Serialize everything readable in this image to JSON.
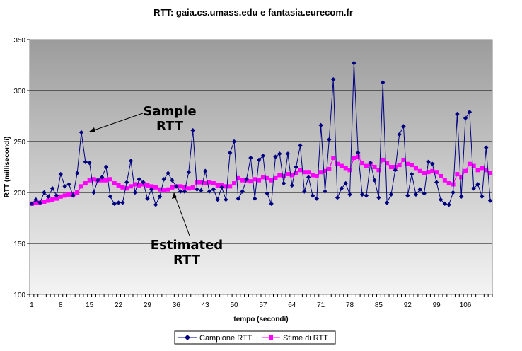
{
  "chart_data": {
    "type": "line",
    "title": "RTT: gaia.cs.umass.edu e fantasia.eurecom.fr",
    "xlabel": "tempo (secondi)",
    "ylabel": "RTT (millisecondi)",
    "ylim": [
      100,
      350
    ],
    "yticks": [
      "100",
      "150",
      "200",
      "250",
      "300",
      "350"
    ],
    "xlim": [
      1,
      111
    ],
    "xticks": [
      "1",
      "8",
      "15",
      "22",
      "29",
      "36",
      "43",
      "50",
      "57",
      "64",
      "71",
      "78",
      "85",
      "92",
      "99",
      "106"
    ],
    "grid": true,
    "legend_position": "bottom",
    "colors": {
      "sample": "#000080",
      "estimated": "#FF00FF",
      "plot_bg_top": "#9c9c9c",
      "plot_bg_bottom": "#f4f4f4"
    },
    "series": [
      {
        "name": "Campione RTT",
        "marker": "diamond",
        "values": [
          189,
          193,
          190,
          200,
          196,
          204,
          197,
          218,
          206,
          208,
          197,
          219,
          259,
          230,
          229,
          200,
          212,
          215,
          225,
          196,
          189,
          190,
          190,
          210,
          231,
          200,
          213,
          210,
          194,
          203,
          188,
          196,
          213,
          219,
          212,
          206,
          201,
          201,
          220,
          261,
          203,
          202,
          221,
          201,
          203,
          193,
          205,
          193,
          239,
          250,
          194,
          201,
          213,
          234,
          194,
          232,
          236,
          199,
          189,
          235,
          238,
          209,
          238,
          207,
          225,
          246,
          201,
          215,
          197,
          194,
          266,
          201,
          252,
          311,
          195,
          204,
          209,
          198,
          327,
          239,
          198,
          197,
          229,
          212,
          195,
          308,
          190,
          198,
          222,
          257,
          265,
          197,
          218,
          198,
          203,
          199,
          230,
          228,
          210,
          193,
          189,
          188,
          200,
          277,
          196,
          273,
          279,
          204,
          208,
          196,
          244,
          192
        ]
      },
      {
        "name": "Stime di RTT",
        "marker": "square",
        "values": [
          189,
          190,
          190,
          191,
          192,
          193,
          194,
          196,
          197,
          198,
          198,
          200,
          206,
          209,
          212,
          213,
          212,
          212,
          212,
          213,
          209,
          207,
          205,
          204,
          206,
          208,
          207,
          208,
          207,
          206,
          205,
          203,
          202,
          203,
          205,
          206,
          206,
          205,
          204,
          205,
          210,
          210,
          209,
          210,
          209,
          207,
          207,
          206,
          206,
          209,
          214,
          212,
          212,
          211,
          213,
          212,
          215,
          214,
          212,
          214,
          217,
          216,
          218,
          217,
          219,
          222,
          220,
          220,
          217,
          216,
          220,
          221,
          223,
          234,
          228,
          226,
          224,
          222,
          234,
          235,
          229,
          226,
          228,
          225,
          222,
          232,
          229,
          225,
          225,
          227,
          232,
          228,
          227,
          224,
          221,
          219,
          220,
          221,
          220,
          216,
          212,
          209,
          208,
          218,
          215,
          221,
          228,
          226,
          222,
          224,
          222,
          219
        ]
      }
    ],
    "annotations": [
      {
        "line1": "Sample",
        "line2": "RTT"
      },
      {
        "line1": "Estimated",
        "line2": "RTT"
      }
    ]
  }
}
